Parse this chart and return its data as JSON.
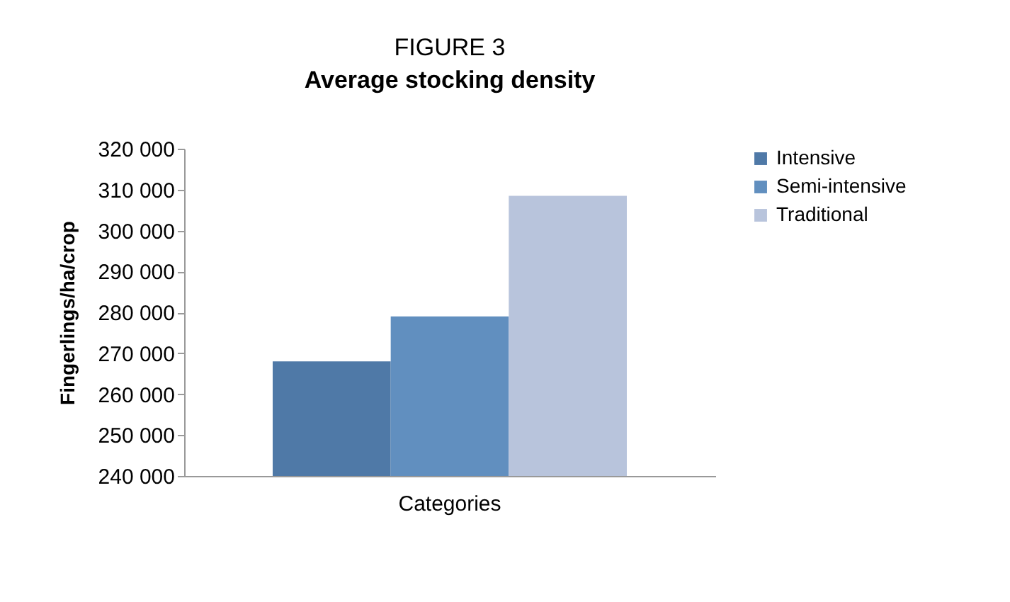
{
  "chart_data": {
    "type": "bar",
    "title": "FIGURE 3",
    "subtitle": "Average stocking density",
    "ylabel": "Fingerlings/ha/crop",
    "categories": [
      "Categories"
    ],
    "series": [
      {
        "name": "Intensive",
        "color": "#4f79a7",
        "values": [
          268000
        ]
      },
      {
        "name": "Semi-intensive",
        "color": "#618fbf",
        "values": [
          279000
        ]
      },
      {
        "name": "Traditional",
        "color": "#b8c4dc",
        "values": [
          308500
        ]
      }
    ],
    "ylim": [
      240000,
      320000
    ],
    "yticks": [
      240000,
      250000,
      260000,
      270000,
      280000,
      290000,
      300000,
      310000,
      320000
    ],
    "grid": false,
    "legend": "right"
  }
}
